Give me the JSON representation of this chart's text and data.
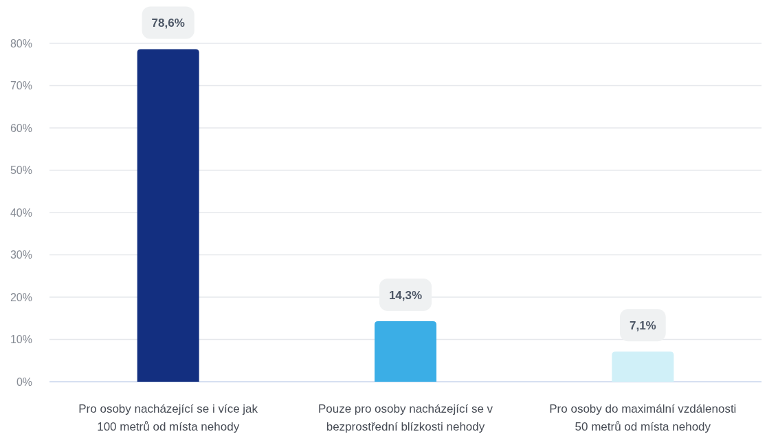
{
  "chart_data": {
    "type": "bar",
    "categories": [
      "Pro osoby nacházející se i více jak 100 metrů od místa nehody",
      "Pouze pro osoby nacházející se v bezprostřední blízkosti nehody",
      "Pro osoby do maximální vzdálenosti 50 metrů od místa nehody"
    ],
    "values": [
      78.6,
      14.3,
      7.1
    ],
    "colors": [
      "#132f80",
      "#3baee6",
      "#d0f0f8"
    ],
    "value_labels": [
      "78,6%",
      "14,3%",
      "7,1%"
    ],
    "ylim": [
      0,
      80
    ],
    "yticks": [
      {
        "value": 0,
        "label": "0%"
      },
      {
        "value": 10,
        "label": "10%"
      },
      {
        "value": 20,
        "label": "20%"
      },
      {
        "value": 30,
        "label": "30%"
      },
      {
        "value": 40,
        "label": "40%"
      },
      {
        "value": 50,
        "label": "50%"
      },
      {
        "value": 60,
        "label": "60%"
      },
      {
        "value": 70,
        "label": "70%"
      },
      {
        "value": 80,
        "label": "80%"
      }
    ],
    "grid": "y"
  }
}
